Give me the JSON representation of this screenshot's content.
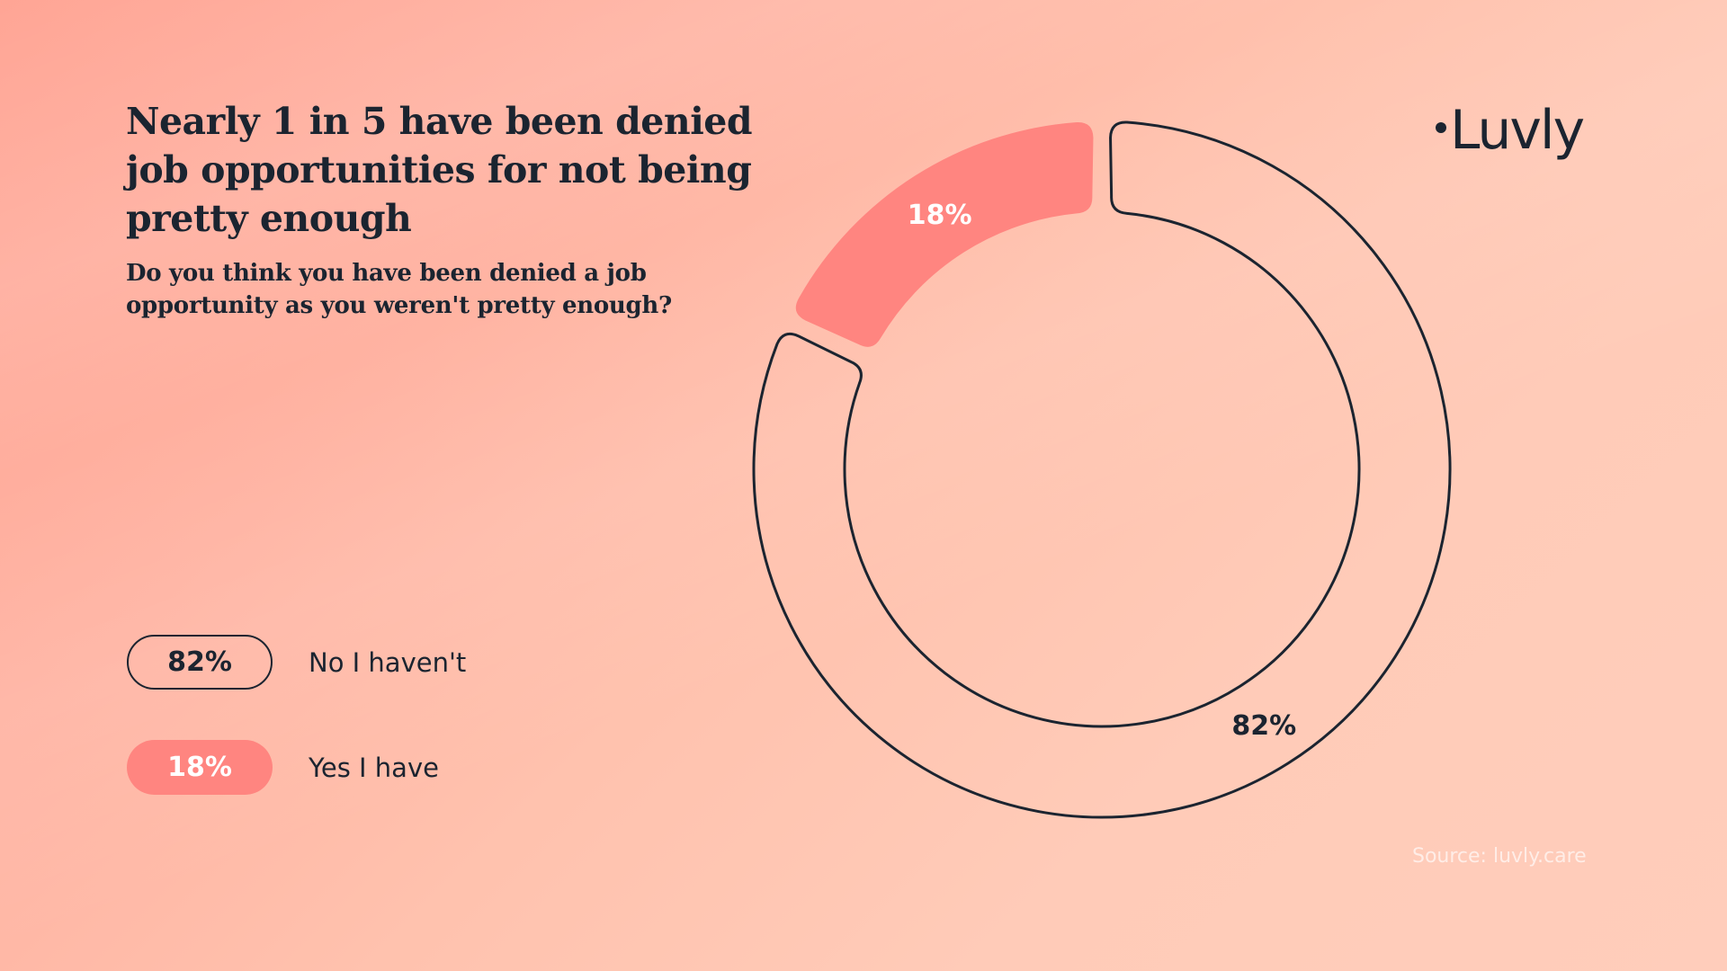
{
  "header": {
    "title_lines": [
      "Nearly 1 in 5 have been denied",
      "job opportunities for not being",
      "pretty enough"
    ],
    "subtitle_lines": [
      "Do you think you have been denied a job",
      "opportunity as you weren't pretty enough?"
    ]
  },
  "brand": {
    "logo_text": "Luvly",
    "logo_icon": "dot-icon"
  },
  "legend": [
    {
      "value_label": "82%",
      "label": "No I haven't",
      "style": "outline"
    },
    {
      "value_label": "18%",
      "label": "Yes I have",
      "style": "filled"
    }
  ],
  "source": "Source: luvly.care",
  "colors": {
    "accent": "#ff8580",
    "ink": "#1b2430",
    "background_start": "#ffa595",
    "background_end": "#ffcdbb"
  },
  "chart_data": {
    "type": "pie",
    "variant": "donut",
    "title": "Nearly 1 in 5 have been denied job opportunities for not being pretty enough",
    "subtitle": "Do you think you have been denied a job opportunity as you weren't pretty enough?",
    "categories": [
      "No I haven't",
      "Yes I have"
    ],
    "values": [
      82,
      18
    ],
    "unit": "%",
    "data_labels": [
      "82%",
      "18%"
    ],
    "legend_placement": "left",
    "series_styles": [
      "outline",
      "filled"
    ]
  }
}
